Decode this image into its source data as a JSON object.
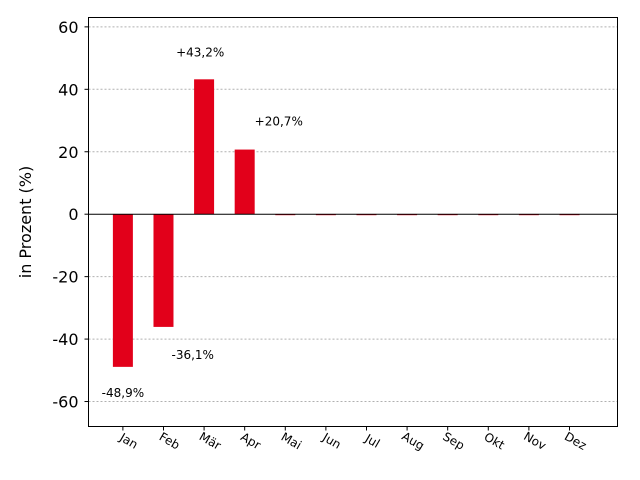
{
  "chart_data": {
    "type": "bar",
    "ylabel": "in Prozent (%)",
    "ylim": [
      -68,
      63
    ],
    "yticks": [
      -60,
      -40,
      -20,
      0,
      20,
      40,
      60
    ],
    "ytick_labels": [
      "-60",
      "-40",
      "-20",
      "0",
      "20",
      "40",
      "60"
    ],
    "grid": true,
    "categories": [
      "Jan",
      "Feb",
      "Mär",
      "Apr",
      "Mai",
      "Jun",
      "Jul",
      "Aug",
      "Sep",
      "Okt",
      "Nov",
      "Dez"
    ],
    "values": [
      -48.9,
      -36.1,
      43.2,
      20.7,
      0,
      0,
      0,
      0,
      0,
      0,
      0,
      0
    ],
    "data_labels": [
      "-48,9%",
      "-36,1%",
      "+43,2%",
      "+20,7%",
      "",
      "",
      "",
      "",
      "",
      "",
      "",
      ""
    ],
    "bar_color": "#e2001a"
  }
}
